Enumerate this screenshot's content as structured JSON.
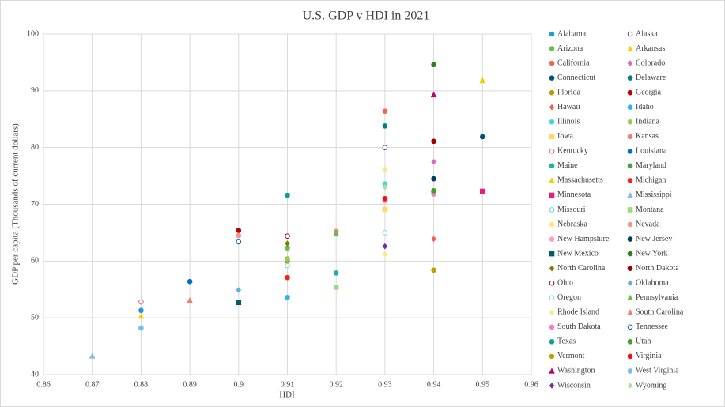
{
  "chart_data": {
    "type": "scatter",
    "title": "U.S. GDP v HDI in 2021",
    "x_label": "HDI",
    "y_label": "GDP per capita (Thousands of current dollars)",
    "xlim": [
      0.86,
      0.96
    ],
    "xticks": [
      0.86,
      0.87,
      0.88,
      0.89,
      0.9,
      0.91,
      0.92,
      0.93,
      0.94,
      0.95,
      0.96
    ],
    "ylim": [
      40,
      100
    ],
    "yticks": [
      40,
      50,
      60,
      70,
      80,
      90,
      100
    ],
    "grid": true,
    "legend": "right",
    "series": [
      {
        "name": "Alabama",
        "color": "#1f9bdc",
        "marker": "circle",
        "x": [
          0.88
        ],
        "values": [
          51.3
        ]
      },
      {
        "name": "Alaska",
        "color": "#7030a0",
        "marker": "open-circle",
        "x": [
          0.93
        ],
        "values": [
          80.0
        ]
      },
      {
        "name": "Arizona",
        "color": "#66c04a",
        "marker": "circle",
        "x": [
          0.91
        ],
        "values": [
          62.3
        ]
      },
      {
        "name": "Arkansas",
        "color": "#ffd000",
        "marker": "triangle",
        "x": [
          0.88
        ],
        "values": [
          50.3
        ]
      },
      {
        "name": "California",
        "color": "#f4644c",
        "marker": "circle",
        "x": [
          0.93
        ],
        "values": [
          86.4
        ]
      },
      {
        "name": "Colorado",
        "color": "#e066c0",
        "marker": "diamond",
        "x": [
          0.94
        ],
        "values": [
          77.5
        ]
      },
      {
        "name": "Connecticut",
        "color": "#00507c",
        "marker": "circle",
        "x": [
          0.95
        ],
        "values": [
          81.9
        ]
      },
      {
        "name": "Delaware",
        "color": "#008080",
        "marker": "circle",
        "x": [
          0.93
        ],
        "values": [
          83.8
        ]
      },
      {
        "name": "Florida",
        "color": "#b0a000",
        "marker": "circle",
        "x": [
          0.91
        ],
        "values": [
          60.0
        ]
      },
      {
        "name": "Georgia",
        "color": "#c00000",
        "marker": "circle",
        "x": [
          0.9
        ],
        "values": [
          65.4
        ]
      },
      {
        "name": "Hawaii",
        "color": "#f06050",
        "marker": "diamond",
        "x": [
          0.94
        ],
        "values": [
          63.9
        ]
      },
      {
        "name": "Idaho",
        "color": "#33b0f0",
        "marker": "circle",
        "x": [
          0.91
        ],
        "values": [
          53.6
        ]
      },
      {
        "name": "Illinois",
        "color": "#40d8d8",
        "marker": "circle",
        "x": [
          0.93
        ],
        "values": [
          73.6
        ]
      },
      {
        "name": "Indiana",
        "color": "#90d050",
        "marker": "circle",
        "x": [
          0.91
        ],
        "values": [
          60.4
        ]
      },
      {
        "name": "Iowa",
        "color": "#ffd966",
        "marker": "square",
        "x": [
          0.93
        ],
        "values": [
          69.1
        ]
      },
      {
        "name": "Kansas",
        "color": "#f08070",
        "marker": "circle",
        "x": [
          0.92
        ],
        "values": [
          65.2
        ]
      },
      {
        "name": "Kentucky",
        "color": "#e06090",
        "marker": "open-circle",
        "x": [
          0.88
        ],
        "values": [
          52.8
        ]
      },
      {
        "name": "Louisiana",
        "color": "#0070c0",
        "marker": "circle",
        "x": [
          0.89
        ],
        "values": [
          56.4
        ]
      },
      {
        "name": "Maine",
        "color": "#20b0a0",
        "marker": "circle",
        "x": [
          0.92
        ],
        "values": [
          57.9
        ]
      },
      {
        "name": "Maryland",
        "color": "#4aa040",
        "marker": "circle",
        "x": [
          0.94
        ],
        "values": [
          72.2
        ]
      },
      {
        "name": "Massachusetts",
        "color": "#f0d000",
        "marker": "triangle",
        "x": [
          0.95
        ],
        "values": [
          91.8
        ]
      },
      {
        "name": "Michigan",
        "color": "#ff2010",
        "marker": "circle",
        "x": [
          0.91
        ],
        "values": [
          57.1
        ]
      },
      {
        "name": "Minnesota",
        "color": "#e02080",
        "marker": "square",
        "x": [
          0.95
        ],
        "values": [
          72.3
        ]
      },
      {
        "name": "Mississippi",
        "color": "#7ec0e8",
        "marker": "triangle",
        "x": [
          0.87
        ],
        "values": [
          43.3
        ]
      },
      {
        "name": "Missouri",
        "color": "#70d0e0",
        "marker": "open-circle",
        "x": [
          0.91
        ],
        "values": [
          59.2
        ]
      },
      {
        "name": "Montana",
        "color": "#a0d880",
        "marker": "square",
        "x": [
          0.92
        ],
        "values": [
          55.4
        ]
      },
      {
        "name": "Nebraska",
        "color": "#ffe680",
        "marker": "circle",
        "x": [
          0.93
        ],
        "values": [
          76.1
        ]
      },
      {
        "name": "Nevada",
        "color": "#f09890",
        "marker": "circle",
        "x": [
          0.9
        ],
        "values": [
          64.5
        ]
      },
      {
        "name": "New Hampshire",
        "color": "#f8a0c8",
        "marker": "circle",
        "x": [
          0.93
        ],
        "values": [
          70.6
        ]
      },
      {
        "name": "New Jersey",
        "color": "#003d60",
        "marker": "circle",
        "x": [
          0.94
        ],
        "values": [
          74.5
        ]
      },
      {
        "name": "New Mexico",
        "color": "#006060",
        "marker": "square",
        "x": [
          0.9
        ],
        "values": [
          52.7
        ]
      },
      {
        "name": "New York",
        "color": "#2e7d1e",
        "marker": "circle",
        "x": [
          0.94
        ],
        "values": [
          94.6
        ]
      },
      {
        "name": "North Carolina",
        "color": "#808000",
        "marker": "diamond",
        "x": [
          0.91
        ],
        "values": [
          63.1
        ]
      },
      {
        "name": "North Dakota",
        "color": "#a00000",
        "marker": "circle",
        "x": [
          0.94
        ],
        "values": [
          81.1
        ]
      },
      {
        "name": "Ohio",
        "color": "#a00020",
        "marker": "open-circle",
        "x": [
          0.91
        ],
        "values": [
          64.4
        ]
      },
      {
        "name": "Oklahoma",
        "color": "#60b0e0",
        "marker": "diamond",
        "x": [
          0.9
        ],
        "values": [
          54.9
        ]
      },
      {
        "name": "Oregon",
        "color": "#80d8f0",
        "marker": "open-circle",
        "x": [
          0.93
        ],
        "values": [
          65.0
        ]
      },
      {
        "name": "Pennsylvania",
        "color": "#60c040",
        "marker": "triangle",
        "x": [
          0.92
        ],
        "values": [
          64.8
        ]
      },
      {
        "name": "Rhode Island",
        "color": "#f0f080",
        "marker": "diamond",
        "x": [
          0.93
        ],
        "values": [
          61.2
        ]
      },
      {
        "name": "South Carolina",
        "color": "#f08070",
        "marker": "triangle",
        "x": [
          0.89
        ],
        "values": [
          53.1
        ]
      },
      {
        "name": "South Dakota",
        "color": "#f080c0",
        "marker": "circle",
        "x": [
          0.94
        ],
        "values": [
          71.8
        ]
      },
      {
        "name": "Tennessee",
        "color": "#0060c0",
        "marker": "open-circle",
        "x": [
          0.9
        ],
        "values": [
          63.4
        ]
      },
      {
        "name": "Texas",
        "color": "#10a090",
        "marker": "circle",
        "x": [
          0.91
        ],
        "values": [
          71.6
        ]
      },
      {
        "name": "Utah",
        "color": "#40a020",
        "marker": "circle",
        "x": [
          0.94
        ],
        "values": [
          72.4
        ]
      },
      {
        "name": "Vermont",
        "color": "#c0a000",
        "marker": "circle",
        "x": [
          0.94
        ],
        "values": [
          58.4
        ]
      },
      {
        "name": "Virginia",
        "color": "#f01010",
        "marker": "circle",
        "x": [
          0.93
        ],
        "values": [
          71.0
        ]
      },
      {
        "name": "Washington",
        "color": "#c00070",
        "marker": "triangle",
        "x": [
          0.94
        ],
        "values": [
          89.3
        ]
      },
      {
        "name": "West Virginia",
        "color": "#70c0f0",
        "marker": "circle",
        "x": [
          0.88
        ],
        "values": [
          48.2
        ]
      },
      {
        "name": "Wisconsin",
        "color": "#7030a0",
        "marker": "diamond",
        "x": [
          0.93
        ],
        "values": [
          62.6
        ]
      },
      {
        "name": "Wyoming",
        "color": "#b0e0a0",
        "marker": "diamond",
        "x": [
          0.93
        ],
        "values": [
          73.0
        ]
      }
    ]
  }
}
